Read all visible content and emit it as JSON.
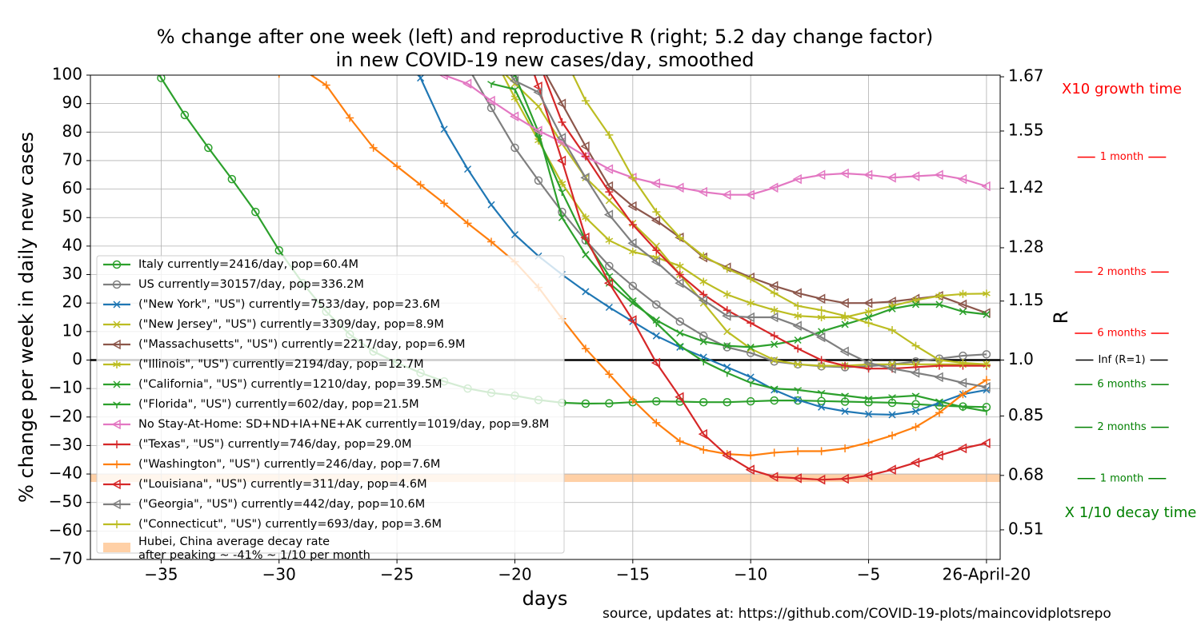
{
  "chart_data": {
    "type": "line",
    "title": [
      "% change after one week (left) and reproductive R (right; 5.2 day change factor)",
      "in new COVID-19 new cases/day, smoothed"
    ],
    "x_label": "days",
    "y_label": "% change per week in daily new cases",
    "y2_label": "R",
    "source": "source, updates at: https://github.com/COVID-19-plots/maincovidplotsrepo",
    "x": [
      -36,
      -35,
      -34,
      -33,
      -32,
      -31,
      -30,
      -29,
      -28,
      -27,
      -26,
      -25,
      -24,
      -23,
      -22,
      -21,
      -20,
      -19,
      -18,
      -17,
      -16,
      -15,
      -14,
      -13,
      -12,
      -11,
      -10,
      -9,
      -8,
      -7,
      -6,
      -5,
      -4,
      -3,
      -2,
      -1,
      0
    ],
    "xlim": [
      -38,
      0.58
    ],
    "ylim": [
      -70,
      100
    ],
    "y2lim": [
      0.409,
      1.674
    ],
    "y2scale": "power",
    "grid": true,
    "reference_line": 0,
    "xticks": [
      {
        "value": -35,
        "label": "−35"
      },
      {
        "value": -30,
        "label": "−30"
      },
      {
        "value": -25,
        "label": "−25"
      },
      {
        "value": -20,
        "label": "−20"
      },
      {
        "value": -15,
        "label": "−15"
      },
      {
        "value": -10,
        "label": "−10"
      },
      {
        "value": -5,
        "label": "−5"
      },
      {
        "value": 0,
        "label": "26-April-20"
      }
    ],
    "yticks": [
      100,
      90,
      80,
      70,
      60,
      50,
      40,
      30,
      20,
      10,
      0,
      {
        "value": -10,
        "label": "−10"
      },
      {
        "value": -20,
        "label": "−20"
      },
      {
        "value": -30,
        "label": "−30"
      },
      {
        "value": -40,
        "label": "−40"
      },
      {
        "value": -50,
        "label": "−50"
      },
      {
        "value": -60,
        "label": "−60"
      },
      {
        "value": -70,
        "label": "−70"
      }
    ],
    "y2ticks": [
      1.67,
      1.55,
      1.42,
      1.28,
      1.15,
      {
        "value": 1.0,
        "label": "1.0"
      },
      0.85,
      0.68,
      0.51
    ],
    "legend": "lower left",
    "series": [
      {
        "name": "Italy currently=2416/day, pop=60.4M",
        "color": "#2ca02c",
        "marker": "circle",
        "values": [
          112,
          99,
          86,
          74.5,
          63.5,
          52,
          38.5,
          27,
          17,
          9,
          3,
          -1,
          -4.5,
          -7.5,
          -10,
          -11.5,
          -12.5,
          -14,
          -15,
          -15.3,
          -15.2,
          -14.8,
          -14.5,
          -14.6,
          -14.8,
          -14.8,
          -14.5,
          -14.2,
          -14.2,
          -14.4,
          -14.6,
          -14.8,
          -15,
          -15.5,
          -16,
          -16.3,
          -16.5
        ]
      },
      {
        "name": "US currently=30157/day, pop=336.2M",
        "color": "#7f7f7f",
        "marker": "circle",
        "values": [
          null,
          null,
          null,
          null,
          null,
          null,
          null,
          null,
          null,
          null,
          null,
          null,
          null,
          null,
          103,
          88.5,
          74.5,
          63,
          52,
          42,
          33,
          26,
          19.5,
          13.5,
          8.5,
          4.5,
          2.5,
          -0.5,
          -1.5,
          -2.2,
          -2.5,
          -2.2,
          -1.5,
          -0.5,
          0.5,
          1.5,
          2
        ]
      },
      {
        "name": "(\"New York\", \"US\") currently=7533/day, pop=23.6M",
        "color": "#1f77b4",
        "marker": "x",
        "values": [
          null,
          null,
          null,
          null,
          null,
          null,
          null,
          null,
          null,
          null,
          null,
          118,
          99,
          81,
          67,
          54.5,
          44,
          36.5,
          30,
          24,
          18.5,
          13.5,
          8.5,
          4.5,
          1,
          -2.5,
          -6,
          -10.5,
          -14,
          -16.5,
          -18,
          -19,
          -19.2,
          -18,
          -15,
          -12,
          -10.5
        ]
      },
      {
        "name": "(\"New Jersey\", \"US\") currently=3309/day, pop=8.9M",
        "color": "#bcbd22",
        "marker": "x",
        "values": [
          null,
          null,
          null,
          null,
          null,
          null,
          null,
          null,
          null,
          null,
          null,
          null,
          null,
          null,
          null,
          105,
          97,
          89,
          76,
          64,
          56,
          48,
          40,
          30,
          20,
          10,
          4,
          0,
          -1.5,
          -2,
          -2,
          -1.5,
          -1.5,
          -1.5,
          -1.5,
          -1.5,
          -1.5
        ]
      },
      {
        "name": "(\"Massachusetts\", \"US\") currently=2217/day, pop=6.9M",
        "color": "#8c564b",
        "marker": "triangle-left",
        "values": [
          null,
          null,
          null,
          null,
          null,
          null,
          null,
          null,
          null,
          null,
          null,
          null,
          null,
          null,
          null,
          null,
          null,
          105,
          90,
          75,
          61,
          54,
          49,
          43,
          36,
          32.5,
          29,
          26,
          23.5,
          21.5,
          20,
          20,
          20.5,
          21.5,
          22.5,
          19.5,
          16.5
        ]
      },
      {
        "name": "(\"Illinois\", \"US\") currently=2194/day, pop=12.7M",
        "color": "#bcbd22",
        "marker": "star",
        "values": [
          null,
          null,
          null,
          null,
          null,
          null,
          null,
          null,
          null,
          null,
          null,
          null,
          null,
          null,
          null,
          108,
          92,
          77,
          62,
          50,
          42,
          38,
          36,
          33,
          27.5,
          23,
          20,
          17.5,
          15.5,
          15,
          15,
          17,
          19,
          21,
          22.5,
          23.2,
          23.3
        ]
      },
      {
        "name": "(\"California\", \"US\") currently=1210/day, pop=39.5M",
        "color": "#2ca02c",
        "marker": "x",
        "values": [
          null,
          null,
          null,
          null,
          null,
          null,
          null,
          null,
          null,
          null,
          null,
          null,
          null,
          null,
          null,
          null,
          100,
          80,
          50,
          37,
          27,
          20,
          14,
          9.5,
          6.5,
          5,
          4.5,
          5.5,
          7,
          10,
          12.5,
          15,
          18,
          19.5,
          19.5,
          17,
          16
        ]
      },
      {
        "name": "(\"Florida\", \"US\") currently=602/day, pop=21.5M",
        "color": "#2ca02c",
        "marker": "tri",
        "values": [
          null,
          null,
          null,
          null,
          null,
          null,
          null,
          null,
          null,
          null,
          null,
          null,
          null,
          null,
          null,
          97,
          95,
          78,
          59,
          42,
          29.5,
          21,
          13,
          5,
          -0.5,
          -4.5,
          -8,
          -10,
          -10.5,
          -11.5,
          -12.5,
          -13.5,
          -13,
          -12.5,
          -14.5,
          -16.5,
          -18
        ]
      },
      {
        "name": "No Stay-At-Home: SD+ND+IA+NE+AK currently=1019/day, pop=9.8M",
        "color": "#e377c2",
        "marker": "triangle-left",
        "values": [
          null,
          null,
          null,
          null,
          null,
          null,
          null,
          null,
          null,
          null,
          null,
          null,
          106,
          100,
          97,
          91,
          85.5,
          80.5,
          76.5,
          71.5,
          67,
          64,
          62,
          60.5,
          59,
          58,
          58,
          60.5,
          63.5,
          65,
          65.5,
          65,
          64,
          64.5,
          65,
          63.5,
          61
        ]
      },
      {
        "name": "(\"Texas\", \"US\") currently=746/day, pop=29.0M",
        "color": "#d62728",
        "marker": "plus",
        "values": [
          null,
          null,
          null,
          null,
          null,
          null,
          null,
          null,
          null,
          null,
          null,
          null,
          null,
          null,
          null,
          null,
          null,
          105,
          83.5,
          71.5,
          59,
          47.5,
          38.5,
          30,
          23,
          17.5,
          13,
          8.5,
          4,
          0,
          -2,
          -3,
          -3,
          -2.5,
          -2,
          -2,
          -2
        ]
      },
      {
        "name": "(\"Washington\", \"US\") currently=246/day, pop=7.6M",
        "color": "#ff7f0e",
        "marker": "plus",
        "values": [
          null,
          null,
          null,
          null,
          null,
          null,
          100.5,
          102,
          96.5,
          85,
          74.5,
          68,
          61.5,
          55,
          48,
          41.5,
          34.5,
          25.5,
          14.5,
          4,
          -5,
          -14,
          -22,
          -28.5,
          -31.5,
          -33,
          -33.5,
          -32.5,
          -32,
          -32,
          -31,
          -29,
          -26.5,
          -23.5,
          -18.5,
          -12,
          -7
        ]
      },
      {
        "name": "(\"Louisiana\", \"US\") currently=311/day, pop=4.6M",
        "color": "#d62728",
        "marker": "triangle-left",
        "values": [
          null,
          null,
          null,
          null,
          null,
          null,
          null,
          null,
          null,
          null,
          null,
          null,
          null,
          null,
          null,
          null,
          120,
          96,
          70,
          43,
          27,
          14,
          -1,
          -13,
          -26,
          -33.5,
          -38.5,
          -41,
          -41.5,
          -42,
          -41.7,
          -40.5,
          -38.5,
          -36,
          -33.5,
          -31,
          -29.2
        ]
      },
      {
        "name": "(\"Georgia\", \"US\") currently=442/day, pop=10.6M",
        "color": "#7f7f7f",
        "marker": "triangle-left",
        "values": [
          null,
          null,
          null,
          null,
          null,
          null,
          null,
          null,
          null,
          null,
          null,
          null,
          null,
          null,
          null,
          110,
          98,
          94,
          78,
          64,
          51,
          41,
          34.5,
          27,
          21,
          15.5,
          15,
          15,
          12,
          8,
          3,
          -1,
          -3,
          -4.5,
          -6,
          -8,
          -9.5
        ]
      },
      {
        "name": "(\"Connecticut\", \"US\") currently=693/day, pop=3.6M",
        "color": "#bcbd22",
        "marker": "plus",
        "values": [
          null,
          null,
          null,
          null,
          null,
          null,
          null,
          null,
          null,
          null,
          null,
          null,
          null,
          null,
          null,
          null,
          null,
          null,
          108,
          91,
          79,
          64,
          52,
          43,
          36.5,
          32,
          28.5,
          23.5,
          19,
          17.5,
          15.5,
          13,
          10.5,
          5,
          0,
          -1,
          -1.5
        ]
      }
    ],
    "band": {
      "label": [
        "Hubei, China average decay rate",
        "after peaking ~ -41% ~ 1/10 per month"
      ],
      "from": -42.8,
      "to": -40,
      "color": "#ffd0a6"
    },
    "growth_label": {
      "text": "X10 growth time",
      "color": "#ff0000"
    },
    "decay_label": {
      "text": "X 1/10 decay time",
      "color": "#008000"
    },
    "r_markers": [
      {
        "value": 71.2,
        "label": "1 month",
        "color": "#ff0000"
      },
      {
        "value": 30.9,
        "label": "2 months",
        "color": "#ff0000"
      },
      {
        "value": 9.4,
        "label": "6 months",
        "color": "#ff0000"
      },
      {
        "value": 0,
        "label": "Inf (R=1)",
        "color": "#000000"
      },
      {
        "value": -8.6,
        "label": "6 months",
        "color": "#008000"
      },
      {
        "value": -23.6,
        "label": "2 months",
        "color": "#008000"
      },
      {
        "value": -41.6,
        "label": "1 month",
        "color": "#008000"
      }
    ]
  }
}
